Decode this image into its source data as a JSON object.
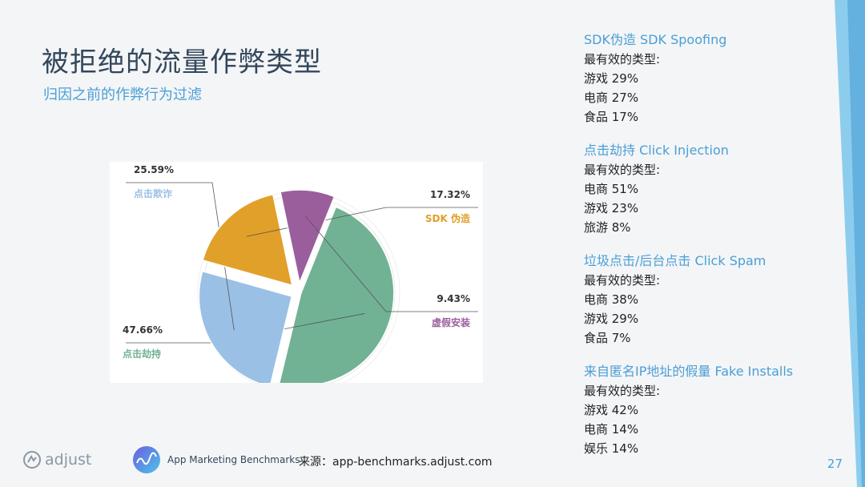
{
  "slide": {
    "title": "被拒绝的流量作弊类型",
    "subtitle": "归因之前的作弊行为过滤",
    "page_number": "27",
    "accent_color": "#4a9fd6"
  },
  "chart_data": {
    "type": "pie",
    "title": "",
    "slices": [
      {
        "label": "点击劫持",
        "value": 47.66,
        "value_label": "47.66%",
        "color": "#71b294"
      },
      {
        "label": "点击欺诈",
        "value": 25.59,
        "value_label": "25.59%",
        "color": "#9bc0e5"
      },
      {
        "label": "SDK 伪造",
        "value": 17.32,
        "value_label": "17.32%",
        "color": "#e0a02a"
      },
      {
        "label": "虚假安装",
        "value": 9.43,
        "value_label": "9.43%",
        "color": "#9b5e9c"
      }
    ],
    "legend": "none"
  },
  "sections": [
    {
      "heading": "SDK伪造 SDK Spoofing",
      "intro": "最有效的类型:",
      "items": [
        "游戏 29%",
        "电商 27%",
        "食品 17%"
      ]
    },
    {
      "heading": "点击劫持 Click Injection",
      "intro": "最有效的类型:",
      "items": [
        "电商 51%",
        "游戏 23%",
        "旅游 8%"
      ]
    },
    {
      "heading": "垃圾点击/后台点击 Click Spam",
      "intro": "最有效的类型:",
      "items": [
        "电商 38%",
        "游戏 29%",
        "食品 7%"
      ]
    },
    {
      "heading": "来自匿名IP地址的假量 Fake Installs",
      "intro": "最有效的类型:",
      "items": [
        "游戏 42%",
        "电商 14%",
        "娱乐 14%"
      ]
    }
  ],
  "footer": {
    "logo_text": "adjust",
    "logo_icon": "adjust-logo-icon",
    "benchmarks_text": "App Marketing Benchmarks",
    "benchmarks_icon": "benchmarks-logo-icon",
    "source": "来源：app-benchmarks.adjust.com"
  }
}
